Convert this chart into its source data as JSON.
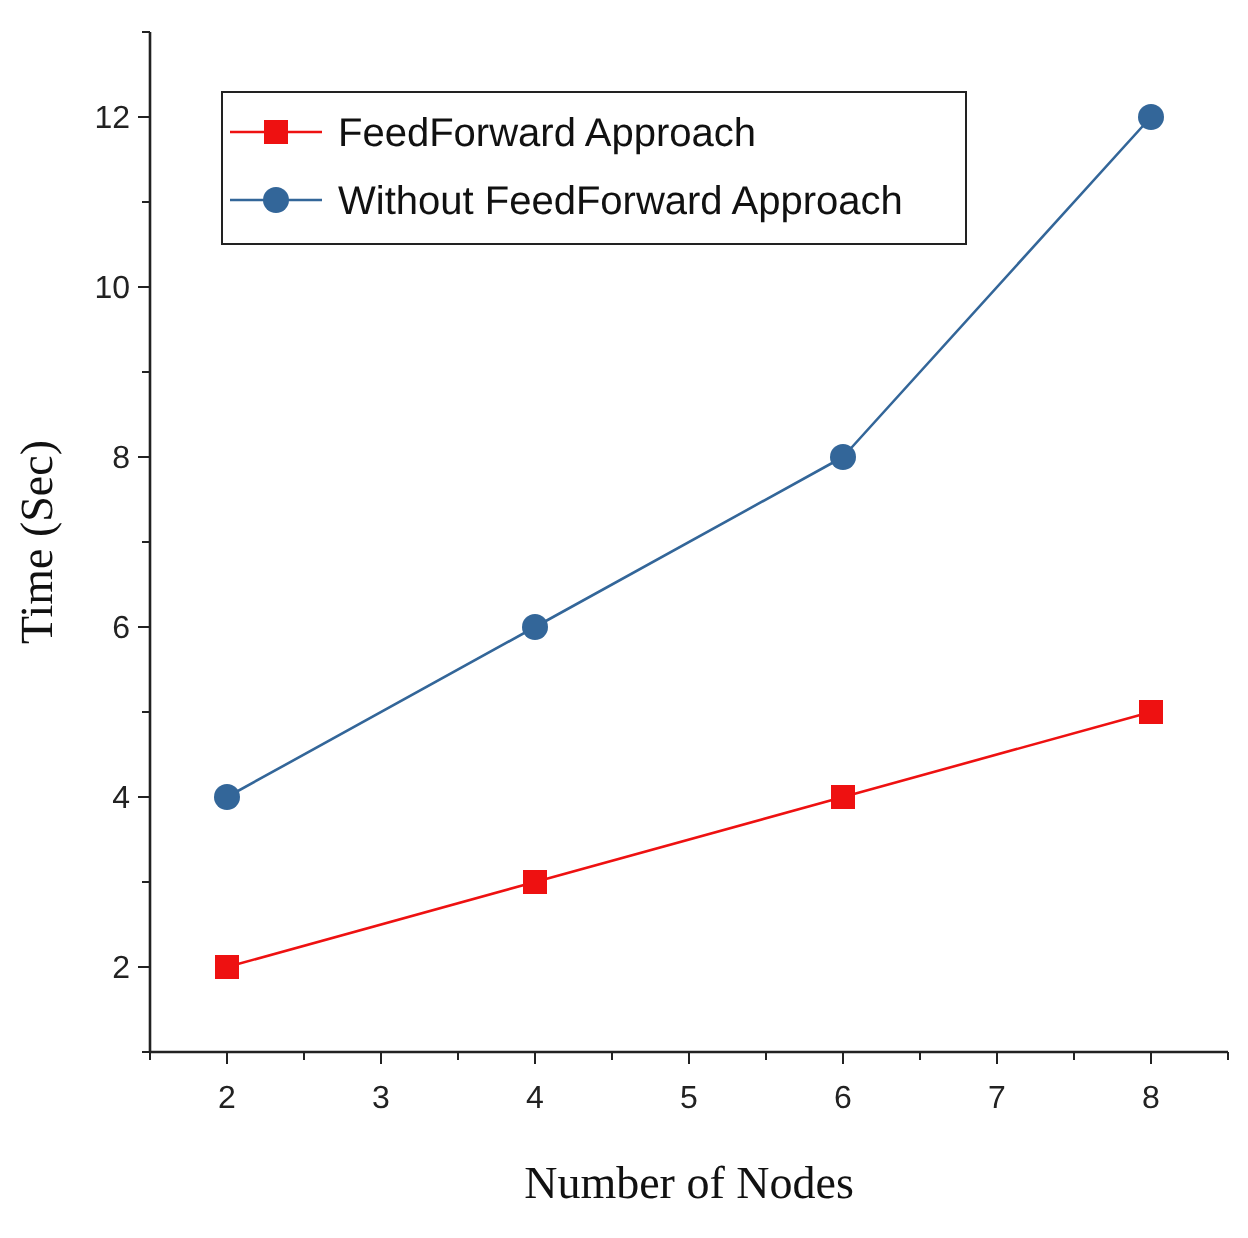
{
  "chart_data": {
    "type": "line",
    "xlabel": "Number of Nodes",
    "ylabel": "Time (Sec)",
    "x": [
      2,
      4,
      6,
      8
    ],
    "series": [
      {
        "name": "FeedForward Approach",
        "color": "#ee1111",
        "marker": "square",
        "values": [
          2,
          3,
          4,
          5
        ]
      },
      {
        "name": "Without FeedForward Approach",
        "color": "#336699",
        "marker": "circle",
        "values": [
          4,
          6,
          8,
          12
        ]
      }
    ],
    "xlim": [
      1.5,
      8.5
    ],
    "xticks": [
      {
        "value": 1.5,
        "label": null
      },
      2,
      {
        "value": 2.5,
        "label": null
      },
      3,
      {
        "value": 3.5,
        "label": null
      },
      4,
      {
        "value": 4.5,
        "label": null
      },
      5,
      {
        "value": 5.5,
        "label": null
      },
      6,
      {
        "value": 6.5,
        "label": null
      },
      7,
      {
        "value": 7.5,
        "label": null
      },
      8,
      {
        "value": 8.5,
        "label": null
      }
    ],
    "ylim": [
      1,
      13
    ],
    "yticks": [
      {
        "value": 1,
        "label": null
      },
      2,
      {
        "value": 3,
        "label": null
      },
      4,
      {
        "value": 5,
        "label": null
      },
      6,
      {
        "value": 7,
        "label": null
      },
      8,
      {
        "value": 9,
        "label": null
      },
      10,
      {
        "value": 11,
        "label": null
      },
      12,
      {
        "value": 13,
        "label": null
      }
    ],
    "grid": false,
    "legend": "top left",
    "line_style": "solid"
  }
}
